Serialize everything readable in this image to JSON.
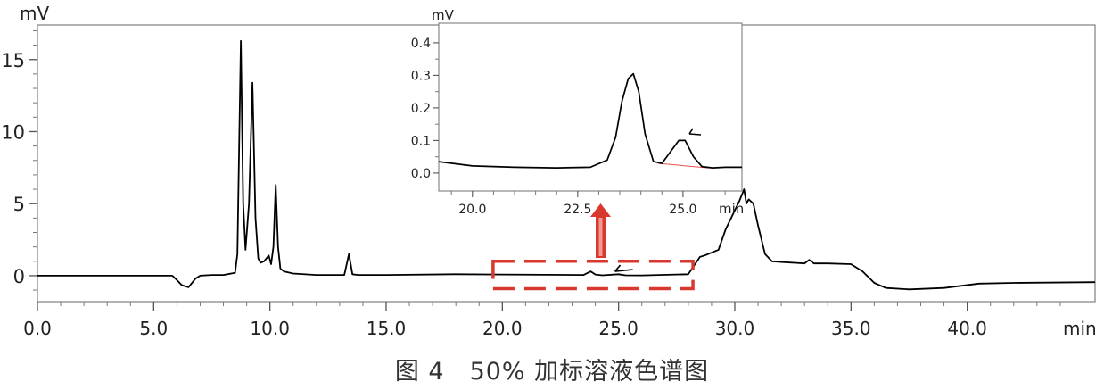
{
  "caption": "图 4　50% 加标溶液色谱图",
  "chart_data": [
    {
      "type": "line",
      "ylabel": "mV",
      "xlabel": "min",
      "xlim": [
        0,
        45.5
      ],
      "ylim": [
        -1.8,
        17.4
      ],
      "x_ticks": [
        0,
        5,
        10,
        15,
        20,
        25,
        30,
        35,
        40
      ],
      "x_tick_labels": [
        "0.0",
        "5.0",
        "10.0",
        "15.0",
        "20.0",
        "25.0",
        "30.0",
        "35.0",
        "40.0"
      ],
      "y_ticks": [
        0,
        5,
        10,
        15
      ],
      "y_tick_labels": [
        "0",
        "5",
        "10",
        "15"
      ],
      "series": [
        {
          "color": "#000000",
          "x": [
            0,
            5.8,
            6.0,
            6.2,
            6.5,
            6.8,
            7.0,
            7.5,
            8.0,
            8.5,
            8.6,
            8.75,
            8.85,
            8.95,
            9.1,
            9.25,
            9.38,
            9.5,
            9.6,
            9.75,
            9.95,
            10.05,
            10.15,
            10.25,
            10.35,
            10.45,
            10.6,
            11.0,
            12.0,
            13.2,
            13.4,
            13.55,
            13.8,
            15.0,
            18.0,
            20.0,
            23.5,
            23.8,
            24.0,
            24.3,
            25.0,
            25.3,
            26.0,
            28.0,
            28.5,
            28.7,
            29.3,
            29.6,
            29.9,
            30.2,
            30.4,
            30.5,
            30.6,
            30.8,
            31.0,
            31.3,
            31.6,
            32.0,
            33.0,
            33.2,
            33.4,
            34.0,
            35.0,
            35.5,
            36.0,
            36.5,
            37.5,
            39.0,
            40.5,
            42.0,
            45.5
          ],
          "y": [
            0.0,
            0.0,
            -0.3,
            -0.65,
            -0.8,
            -0.2,
            0.0,
            0.05,
            0.05,
            0.2,
            1.5,
            16.3,
            5.0,
            1.8,
            5.0,
            13.4,
            4.0,
            1.2,
            0.9,
            1.0,
            1.4,
            0.8,
            2.0,
            6.3,
            2.0,
            0.5,
            0.3,
            0.15,
            0.05,
            0.05,
            1.5,
            0.1,
            0.05,
            0.05,
            0.1,
            0.08,
            0.05,
            0.3,
            0.08,
            0.03,
            0.1,
            0.03,
            0.02,
            0.1,
            1.3,
            1.4,
            1.8,
            3.2,
            4.2,
            5.2,
            6.0,
            5.0,
            5.3,
            5.0,
            3.5,
            1.5,
            1.0,
            0.95,
            0.85,
            1.1,
            0.85,
            0.85,
            0.8,
            0.3,
            -0.5,
            -0.85,
            -0.95,
            -0.85,
            -0.55,
            -0.5,
            -0.45
          ]
        }
      ],
      "annotation": {
        "highlight_box_x": [
          19.6,
          28.2
        ],
        "highlight_box_y": [
          -0.9,
          1.0
        ],
        "peak_mark": "1"
      }
    },
    {
      "type": "line",
      "ylabel": "mV",
      "xlabel": "min",
      "xlim": [
        19.2,
        26.4
      ],
      "ylim": [
        -0.055,
        0.46
      ],
      "x_ticks": [
        20.0,
        22.5,
        25.0
      ],
      "x_tick_labels": [
        "20.0",
        "22.5",
        "25.0"
      ],
      "y_ticks": [
        0.0,
        0.1,
        0.2,
        0.3,
        0.4
      ],
      "y_tick_labels": [
        "0.0",
        "0.1",
        "0.2",
        "0.3",
        "0.4"
      ],
      "series": [
        {
          "color": "#000000",
          "x": [
            19.2,
            20.0,
            21.0,
            22.0,
            22.8,
            23.2,
            23.4,
            23.55,
            23.7,
            23.82,
            23.95,
            24.1,
            24.3,
            24.5,
            24.7,
            24.9,
            25.05,
            25.25,
            25.45,
            25.7,
            26.0,
            26.4
          ],
          "y": [
            0.035,
            0.022,
            0.018,
            0.016,
            0.018,
            0.04,
            0.11,
            0.22,
            0.29,
            0.305,
            0.25,
            0.12,
            0.035,
            0.03,
            0.065,
            0.1,
            0.1,
            0.05,
            0.02,
            0.016,
            0.018,
            0.018
          ]
        }
      ],
      "baseline": {
        "color": "#e85050",
        "x": [
          24.4,
          25.6
        ],
        "y": [
          0.03,
          0.016
        ]
      },
      "peak_mark": "1"
    }
  ]
}
